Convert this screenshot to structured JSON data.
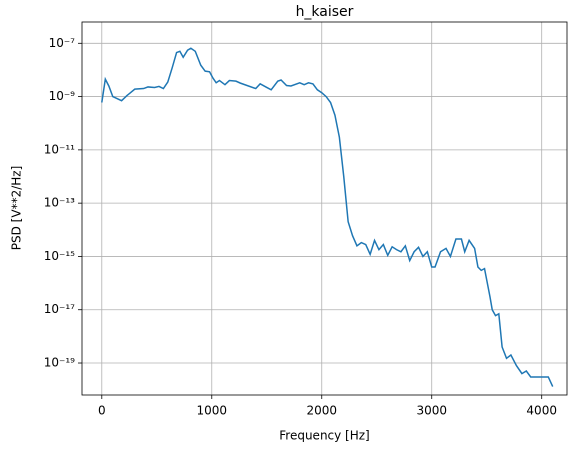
{
  "chart_data": {
    "type": "line",
    "title": "h_kaiser",
    "xlabel": "Frequency [Hz]",
    "ylabel": "PSD [V**2/Hz]",
    "log_y": true,
    "grid": true,
    "xlim": [
      -180,
      4230
    ],
    "ylim": [
      6.3e-21,
      6.3e-07
    ],
    "xticks": [
      0,
      1000,
      2000,
      3000,
      4000
    ],
    "yticks": [
      {
        "value": 1e-07,
        "label": "10⁻⁷"
      },
      {
        "value": 1e-09,
        "label": "10⁻⁹"
      },
      {
        "value": 1e-11,
        "label": "10⁻¹¹"
      },
      {
        "value": 1e-13,
        "label": "10⁻¹³"
      },
      {
        "value": 1e-15,
        "label": "10⁻¹⁵"
      },
      {
        "value": 1e-17,
        "label": "10⁻¹⁷"
      },
      {
        "value": 1e-19,
        "label": "10⁻¹⁹"
      }
    ],
    "series": [
      {
        "color": "#1f77b4",
        "x": [
          0,
          32,
          64,
          100,
          180,
          230,
          300,
          380,
          420,
          480,
          520,
          560,
          600,
          640,
          680,
          710,
          740,
          780,
          810,
          850,
          900,
          940,
          980,
          1010,
          1040,
          1070,
          1120,
          1160,
          1220,
          1260,
          1400,
          1440,
          1500,
          1540,
          1600,
          1630,
          1680,
          1720,
          1800,
          1840,
          1880,
          1920,
          1960,
          2000,
          2040,
          2080,
          2120,
          2160,
          2200,
          2240,
          2280,
          2320,
          2360,
          2400,
          2440,
          2480,
          2520,
          2560,
          2600,
          2640,
          2680,
          2720,
          2760,
          2800,
          2840,
          2880,
          2920,
          2960,
          3000,
          3030,
          3080,
          3130,
          3170,
          3220,
          3270,
          3300,
          3340,
          3390,
          3420,
          3450,
          3480,
          3530,
          3550,
          3580,
          3610,
          3640,
          3680,
          3720,
          3770,
          3820,
          3860,
          3900,
          3940,
          3990,
          4060,
          4100
        ],
        "values": [
          6e-10,
          4.5e-09,
          2.5e-09,
          1e-09,
          7e-10,
          1.1e-09,
          1.9e-09,
          2e-09,
          2.3e-09,
          2.2e-09,
          2.4e-09,
          2e-09,
          3.5e-09,
          1.2e-08,
          4.5e-08,
          5e-08,
          3e-08,
          5.5e-08,
          6.5e-08,
          5e-08,
          1.5e-08,
          9e-09,
          8.5e-09,
          5e-09,
          3.3e-09,
          4e-09,
          2.8e-09,
          4e-09,
          3.8e-09,
          3.2e-09,
          2e-09,
          3e-09,
          2.2e-09,
          1.8e-09,
          3.8e-09,
          4.2e-09,
          2.6e-09,
          2.5e-09,
          3.3e-09,
          2.8e-09,
          3.3e-09,
          3e-09,
          1.8e-09,
          1.4e-09,
          1e-09,
          6e-10,
          2e-10,
          3e-11,
          1e-12,
          2e-14,
          6e-15,
          2.5e-15,
          3.3e-15,
          2.8e-15,
          1.2e-15,
          4e-15,
          1.8e-15,
          2.8e-15,
          1.1e-15,
          2.3e-15,
          1.8e-15,
          1.5e-15,
          2.5e-15,
          7e-16,
          1.5e-15,
          2.2e-15,
          1e-15,
          1.5e-15,
          4e-16,
          4e-16,
          1.5e-15,
          2e-15,
          1e-15,
          4.5e-15,
          4.5e-15,
          1.5e-15,
          4e-15,
          2e-15,
          4e-16,
          3e-16,
          3.5e-16,
          3e-17,
          1e-17,
          6e-18,
          7e-18,
          4e-19,
          1.5e-19,
          2e-19,
          8e-20,
          4e-20,
          5e-20,
          3e-20,
          3e-20,
          3e-20,
          3e-20,
          1.3e-20
        ]
      }
    ]
  }
}
